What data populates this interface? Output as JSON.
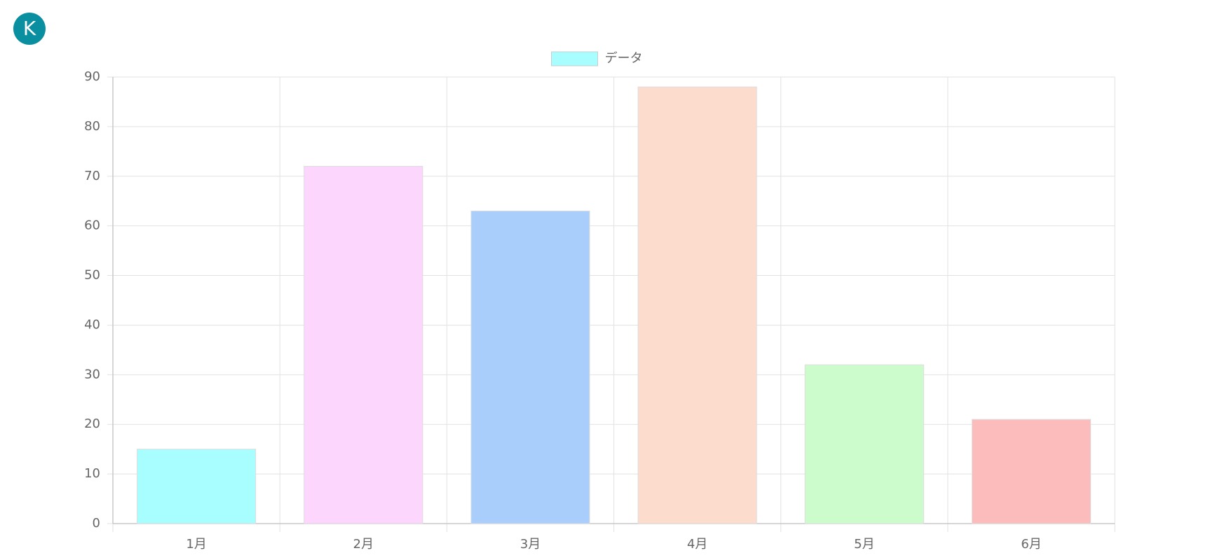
{
  "logo": "K",
  "chart_data": {
    "type": "bar",
    "categories": [
      "1月",
      "2月",
      "3月",
      "4月",
      "5月",
      "6月"
    ],
    "series": [
      {
        "name": "データ",
        "values": [
          15,
          72,
          63,
          88,
          32,
          21
        ],
        "colors": [
          "#a8fefe",
          "#fcd6fc",
          "#aacefc",
          "#fcdccc",
          "#ccfccc",
          "#fcbcbc"
        ]
      }
    ],
    "ylim": [
      0,
      90
    ],
    "yticks": [
      0,
      10,
      20,
      30,
      40,
      50,
      60,
      70,
      80,
      90
    ],
    "grid": true,
    "legend": "top"
  }
}
